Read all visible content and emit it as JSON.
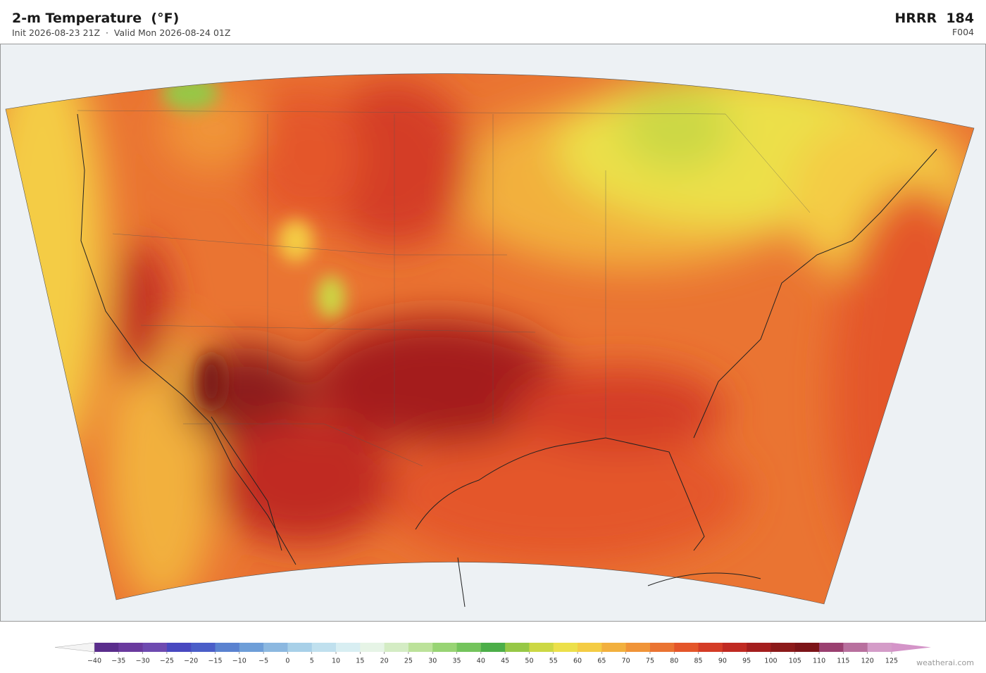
{
  "header": {
    "title": "2-m Temperature  (°F)",
    "run_info": "Init 2026-08-23 21Z  ·  Valid Mon 2026-08-24 01Z",
    "model": "HRRR  184",
    "forecast_hour": "F004"
  },
  "colorbar": {
    "ticks": [
      {
        "value": -40,
        "label": "−40"
      },
      {
        "value": -35,
        "label": "−35"
      },
      {
        "value": -30,
        "label": "−30"
      },
      {
        "value": -25,
        "label": "−25"
      },
      {
        "value": -20,
        "label": "−20"
      },
      {
        "value": -15,
        "label": "−15"
      },
      {
        "value": -10,
        "label": "−10"
      },
      {
        "value": -5,
        "label": "−5"
      },
      0,
      5,
      10,
      15,
      20,
      25,
      30,
      35,
      40,
      45,
      50,
      55,
      60,
      65,
      70,
      75,
      80,
      85,
      90,
      95,
      100,
      105,
      110,
      115,
      120,
      125
    ],
    "colors": [
      "#5a2d8c",
      "#6a3a9e",
      "#6e4ab0",
      "#4848c0",
      "#4a5ec8",
      "#5a82d0",
      "#6e9ed8",
      "#8cb8e0",
      "#a8d0e8",
      "#c0e0ee",
      "#d8eef2",
      "#e6f4e6",
      "#d4ecc4",
      "#bce29a",
      "#98d474",
      "#74c45c",
      "#4cae48",
      "#96c846",
      "#ccd844",
      "#ece04a",
      "#f4cc44",
      "#f2b03e",
      "#f09438",
      "#ea7432",
      "#e4562a",
      "#d43c26",
      "#c02a22",
      "#a41e1e",
      "#8c1a1a",
      "#7c1418",
      "#9a4070",
      "#b8709e",
      "#d49cc8"
    ],
    "extend_colors": [
      "#f4f4f4",
      "#d494c8"
    ]
  },
  "footer": {
    "credit": "weatherai.com"
  }
}
